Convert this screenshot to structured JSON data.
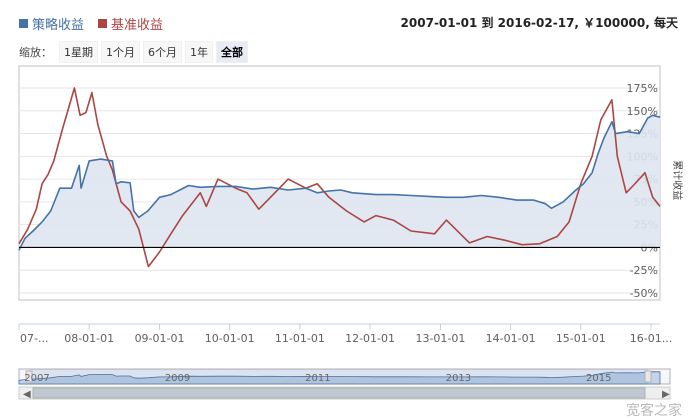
{
  "legend": {
    "strategy": "策略收益",
    "benchmark": "基准收益"
  },
  "range_info": "2007-01-01 到 2016-02-17, ￥100000, 每天",
  "zoom": {
    "label": "缩放：",
    "buttons": [
      "1星期",
      "1个月",
      "6个月",
      "1年",
      "全部"
    ],
    "active": "全部"
  },
  "navigator": {
    "years": [
      "2007",
      "2009",
      "2011",
      "2013",
      "2015"
    ]
  },
  "watermark": "宽客之家",
  "chart_data": {
    "type": "line",
    "title": "",
    "xlabel": "",
    "ylabel": "累计收益",
    "x_tick_labels": [
      "07-...",
      "08-01-01",
      "09-01-01",
      "10-01-01",
      "11-01-01",
      "12-01-01",
      "13-01-01",
      "14-01-01",
      "15-01-01",
      "16-01..."
    ],
    "y_tick_labels": [
      "175%",
      "150%",
      "125%",
      "100%",
      "75%",
      "50%",
      "25%",
      "0%",
      "-25%",
      "-50%"
    ],
    "ylim": [
      -50,
      175
    ],
    "xlim": [
      "2007-01-01",
      "2016-02-17"
    ],
    "grid": true,
    "legend_position": "top-left",
    "colors": {
      "strategy": "#4572a7",
      "benchmark": "#aa4643",
      "area_fill": "#dfe6f1",
      "zero_line": "#000000"
    },
    "series": [
      {
        "name": "策略收益",
        "points": [
          [
            "2007-01-01",
            -3
          ],
          [
            "2007-02-01",
            10
          ],
          [
            "2007-03-15",
            18
          ],
          [
            "2007-05-01",
            28
          ],
          [
            "2007-06-15",
            40
          ],
          [
            "2007-08-01",
            65
          ],
          [
            "2007-10-01",
            65
          ],
          [
            "2007-11-10",
            90
          ],
          [
            "2007-11-20",
            65
          ],
          [
            "2008-01-01",
            95
          ],
          [
            "2008-03-01",
            97
          ],
          [
            "2008-05-01",
            95
          ],
          [
            "2008-05-20",
            70
          ],
          [
            "2008-06-15",
            72
          ],
          [
            "2008-08-01",
            71
          ],
          [
            "2008-08-20",
            40
          ],
          [
            "2008-09-15",
            33
          ],
          [
            "2008-11-01",
            40
          ],
          [
            "2009-01-01",
            55
          ],
          [
            "2009-03-01",
            58
          ],
          [
            "2009-06-01",
            68
          ],
          [
            "2009-08-01",
            66
          ],
          [
            "2009-11-01",
            67
          ],
          [
            "2010-02-01",
            67
          ],
          [
            "2010-05-01",
            64
          ],
          [
            "2010-08-01",
            66
          ],
          [
            "2010-11-01",
            63
          ],
          [
            "2011-02-01",
            65
          ],
          [
            "2011-04-01",
            60
          ],
          [
            "2011-06-01",
            62
          ],
          [
            "2011-08-01",
            63
          ],
          [
            "2011-10-01",
            60
          ],
          [
            "2011-12-01",
            59
          ],
          [
            "2012-02-01",
            58
          ],
          [
            "2012-05-01",
            58
          ],
          [
            "2012-08-01",
            57
          ],
          [
            "2012-11-01",
            56
          ],
          [
            "2013-02-01",
            55
          ],
          [
            "2013-05-01",
            55
          ],
          [
            "2013-08-01",
            57
          ],
          [
            "2013-11-01",
            55
          ],
          [
            "2014-02-01",
            52
          ],
          [
            "2014-05-01",
            52
          ],
          [
            "2014-07-01",
            48
          ],
          [
            "2014-08-01",
            43
          ],
          [
            "2014-10-01",
            50
          ],
          [
            "2014-12-01",
            62
          ],
          [
            "2015-01-15",
            70
          ],
          [
            "2015-03-01",
            82
          ],
          [
            "2015-04-01",
            103
          ],
          [
            "2015-05-01",
            120
          ],
          [
            "2015-06-12",
            138
          ],
          [
            "2015-07-01",
            125
          ],
          [
            "2015-09-01",
            127
          ],
          [
            "2015-11-01",
            125
          ],
          [
            "2015-12-15",
            142
          ],
          [
            "2016-01-10",
            145
          ],
          [
            "2016-02-17",
            143
          ]
        ]
      },
      {
        "name": "基准收益",
        "points": [
          [
            "2007-01-01",
            4
          ],
          [
            "2007-02-15",
            20
          ],
          [
            "2007-04-01",
            42
          ],
          [
            "2007-05-01",
            70
          ],
          [
            "2007-06-01",
            80
          ],
          [
            "2007-07-01",
            95
          ],
          [
            "2007-08-15",
            130
          ],
          [
            "2007-10-16",
            175
          ],
          [
            "2007-11-15",
            145
          ],
          [
            "2007-12-15",
            148
          ],
          [
            "2008-01-15",
            170
          ],
          [
            "2008-02-15",
            135
          ],
          [
            "2008-04-01",
            100
          ],
          [
            "2008-05-01",
            85
          ],
          [
            "2008-06-15",
            50
          ],
          [
            "2008-08-01",
            40
          ],
          [
            "2008-09-15",
            20
          ],
          [
            "2008-11-04",
            -21
          ],
          [
            "2009-01-01",
            -5
          ],
          [
            "2009-03-01",
            15
          ],
          [
            "2009-05-01",
            35
          ],
          [
            "2009-08-01",
            60
          ],
          [
            "2009-09-01",
            45
          ],
          [
            "2009-11-01",
            75
          ],
          [
            "2010-02-01",
            65
          ],
          [
            "2010-04-01",
            60
          ],
          [
            "2010-06-01",
            42
          ],
          [
            "2010-08-01",
            55
          ],
          [
            "2010-11-01",
            75
          ],
          [
            "2011-02-01",
            65
          ],
          [
            "2011-04-01",
            70
          ],
          [
            "2011-06-01",
            55
          ],
          [
            "2011-09-01",
            40
          ],
          [
            "2011-12-01",
            28
          ],
          [
            "2012-02-01",
            35
          ],
          [
            "2012-05-01",
            30
          ],
          [
            "2012-08-01",
            18
          ],
          [
            "2012-12-01",
            15
          ],
          [
            "2013-02-01",
            30
          ],
          [
            "2013-06-01",
            5
          ],
          [
            "2013-09-01",
            12
          ],
          [
            "2013-12-01",
            8
          ],
          [
            "2014-03-01",
            3
          ],
          [
            "2014-06-01",
            4
          ],
          [
            "2014-09-01",
            12
          ],
          [
            "2014-11-01",
            28
          ],
          [
            "2015-01-01",
            70
          ],
          [
            "2015-03-01",
            100
          ],
          [
            "2015-04-15",
            140
          ],
          [
            "2015-06-12",
            162
          ],
          [
            "2015-07-10",
            100
          ],
          [
            "2015-08-25",
            60
          ],
          [
            "2015-10-01",
            68
          ],
          [
            "2015-12-01",
            82
          ],
          [
            "2016-01-10",
            55
          ],
          [
            "2016-02-17",
            45
          ]
        ]
      }
    ]
  }
}
